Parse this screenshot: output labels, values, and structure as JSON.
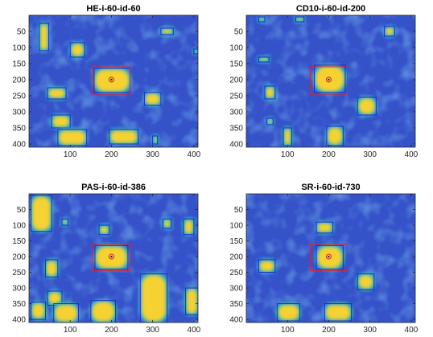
{
  "chart_data": [
    {
      "type": "heatmap",
      "title": "HE-i-60-id-60",
      "xticks": [
        100,
        200,
        300,
        400
      ],
      "yticks": [
        50,
        100,
        150,
        200,
        250,
        300,
        350,
        400
      ],
      "xlim": [
        0,
        410
      ],
      "ylim": [
        0,
        410
      ],
      "roi": {
        "x": [
          155,
          245
        ],
        "y": [
          160,
          245
        ]
      },
      "center": {
        "x": 200,
        "y": 200
      },
      "blobs": [
        {
          "x": [
            25,
            48
          ],
          "y": [
            25,
            110
          ]
        },
        {
          "x": [
            100,
            135
          ],
          "y": [
            85,
            130
          ]
        },
        {
          "x": [
            158,
            245
          ],
          "y": [
            165,
            240
          ]
        },
        {
          "x": [
            45,
            90
          ],
          "y": [
            225,
            260
          ]
        },
        {
          "x": [
            55,
            100
          ],
          "y": [
            310,
            350
          ]
        },
        {
          "x": [
            280,
            320
          ],
          "y": [
            240,
            280
          ]
        },
        {
          "x": [
            70,
            140
          ],
          "y": [
            355,
            405
          ]
        },
        {
          "x": [
            195,
            265
          ],
          "y": [
            355,
            400
          ]
        },
        {
          "x": [
            320,
            350
          ],
          "y": [
            40,
            60
          ]
        },
        {
          "x": [
            400,
            410
          ],
          "y": [
            105,
            120
          ]
        },
        {
          "x": [
            300,
            312
          ],
          "y": [
            375,
            400
          ]
        }
      ]
    },
    {
      "type": "heatmap",
      "title": "CD10-i-60-id-200",
      "xticks": [
        100,
        200,
        300,
        400
      ],
      "yticks": [
        50,
        100,
        150,
        200,
        250,
        300,
        350,
        400
      ],
      "xlim": [
        0,
        410
      ],
      "ylim": [
        0,
        410
      ],
      "roi": {
        "x": [
          155,
          245
        ],
        "y": [
          160,
          245
        ]
      },
      "center": {
        "x": 200,
        "y": 200
      },
      "blobs": [
        {
          "x": [
            165,
            240
          ],
          "y": [
            155,
            240
          ]
        },
        {
          "x": [
            335,
            360
          ],
          "y": [
            35,
            65
          ]
        },
        {
          "x": [
            45,
            70
          ],
          "y": [
            220,
            260
          ]
        },
        {
          "x": [
            270,
            315
          ],
          "y": [
            255,
            310
          ]
        },
        {
          "x": [
            195,
            235
          ],
          "y": [
            345,
            405
          ]
        },
        {
          "x": [
            90,
            110
          ],
          "y": [
            350,
            405
          ]
        },
        {
          "x": [
            30,
            55
          ],
          "y": [
            130,
            145
          ]
        },
        {
          "x": [
            50,
            65
          ],
          "y": [
            320,
            340
          ]
        },
        {
          "x": [
            30,
            45
          ],
          "y": [
            5,
            20
          ]
        },
        {
          "x": [
            120,
            140
          ],
          "y": [
            5,
            20
          ]
        }
      ]
    },
    {
      "type": "heatmap",
      "title": "PAS-i-60-id-386",
      "xticks": [
        100,
        200,
        300,
        400
      ],
      "yticks": [
        50,
        100,
        150,
        200,
        250,
        300,
        350,
        400
      ],
      "xlim": [
        0,
        410
      ],
      "ylim": [
        0,
        410
      ],
      "roi": {
        "x": [
          155,
          245
        ],
        "y": [
          160,
          245
        ]
      },
      "center": {
        "x": 200,
        "y": 200
      },
      "blobs": [
        {
          "x": [
            5,
            55
          ],
          "y": [
            5,
            120
          ]
        },
        {
          "x": [
            160,
            240
          ],
          "y": [
            165,
            240
          ]
        },
        {
          "x": [
            40,
            70
          ],
          "y": [
            210,
            265
          ]
        },
        {
          "x": [
            45,
            80
          ],
          "y": [
            310,
            355
          ]
        },
        {
          "x": [
            60,
            120
          ],
          "y": [
            350,
            410
          ]
        },
        {
          "x": [
            150,
            210
          ],
          "y": [
            340,
            410
          ]
        },
        {
          "x": [
            270,
            335
          ],
          "y": [
            255,
            410
          ]
        },
        {
          "x": [
            380,
            410
          ],
          "y": [
            300,
            385
          ]
        },
        {
          "x": [
            170,
            195
          ],
          "y": [
            100,
            130
          ]
        },
        {
          "x": [
            325,
            345
          ],
          "y": [
            80,
            110
          ]
        },
        {
          "x": [
            375,
            400
          ],
          "y": [
            80,
            130
          ]
        },
        {
          "x": [
            80,
            95
          ],
          "y": [
            80,
            100
          ]
        },
        {
          "x": [
            5,
            40
          ],
          "y": [
            345,
            400
          ]
        }
      ]
    },
    {
      "type": "heatmap",
      "title": "SR-i-60-id-730",
      "xticks": [
        100,
        200,
        300,
        400
      ],
      "yticks": [
        50,
        100,
        150,
        200,
        250,
        300,
        350,
        400
      ],
      "xlim": [
        0,
        410
      ],
      "ylim": [
        0,
        410
      ],
      "roi": {
        "x": [
          155,
          245
        ],
        "y": [
          160,
          245
        ]
      },
      "center": {
        "x": 200,
        "y": 200
      },
      "blobs": [
        {
          "x": [
            170,
            235
          ],
          "y": [
            165,
            240
          ]
        },
        {
          "x": [
            170,
            210
          ],
          "y": [
            90,
            125
          ]
        },
        {
          "x": [
            30,
            70
          ],
          "y": [
            210,
            250
          ]
        },
        {
          "x": [
            270,
            310
          ],
          "y": [
            255,
            305
          ]
        },
        {
          "x": [
            75,
            130
          ],
          "y": [
            350,
            405
          ]
        },
        {
          "x": [
            190,
            255
          ],
          "y": [
            350,
            405
          ]
        }
      ]
    }
  ]
}
